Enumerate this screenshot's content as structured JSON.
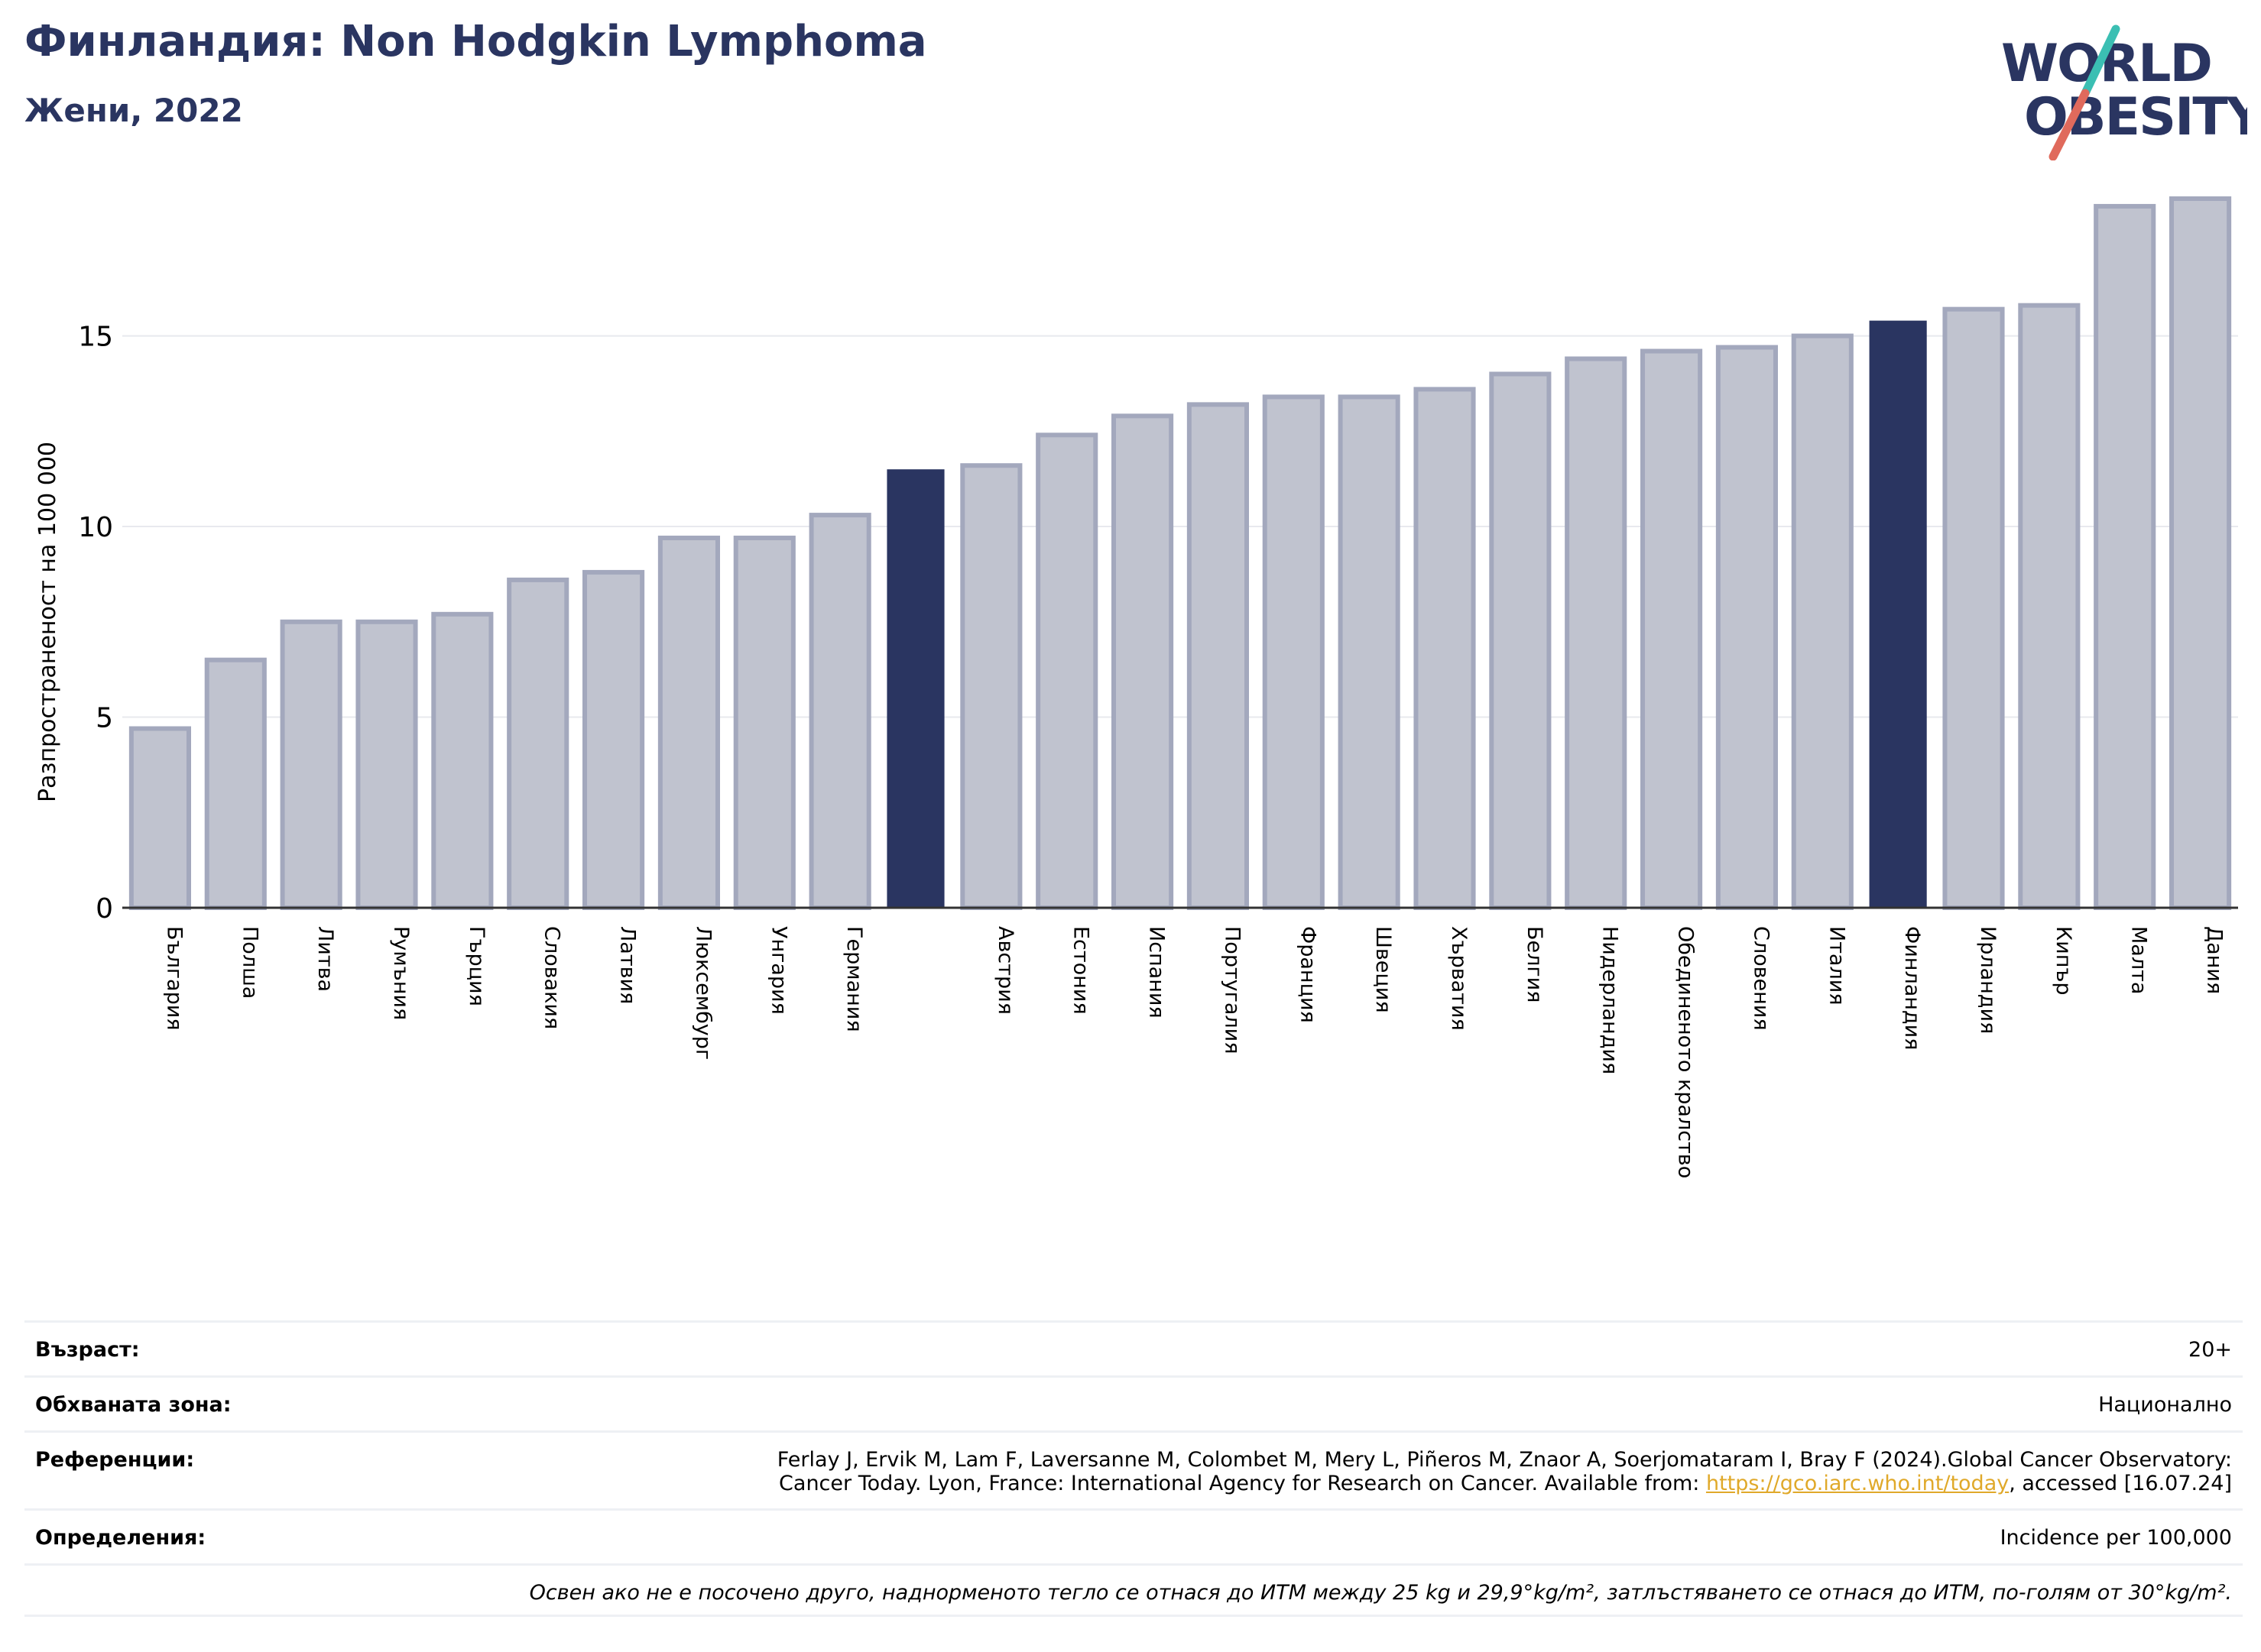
{
  "header": {
    "title": "Финландия: Non Hodgkin Lymphoma",
    "subtitle": "Жени, 2022"
  },
  "logo": {
    "line1": "WORLD",
    "line2": "OBESITY",
    "colors": {
      "text": "#2a3561",
      "slash_teal": "#3bbfb3",
      "slash_red": "#e06a5c"
    }
  },
  "chart_data": {
    "type": "bar",
    "ylabel": "Разпространеност  на 100 000",
    "xlabel": "",
    "ylim": [
      0,
      19
    ],
    "yticks": [
      0,
      5,
      10,
      15
    ],
    "grid": true,
    "colors": {
      "default": "#c0c3cf",
      "default_edge": "#a3a8bd",
      "highlight": "#2a3561"
    },
    "categories": [
      "България",
      "Полша",
      "Литва",
      "Румъния",
      "Гърция",
      "Словакия",
      "Латвия",
      "Люксембург",
      "Унгария",
      "Германия",
      "",
      "Австрия",
      "Естония",
      "Испания",
      "Португалия",
      "Франция",
      "Швеция",
      "Хърватия",
      "Белгия",
      "Нидерландия",
      "Обединеното кралство",
      "Словения",
      "Италия",
      "Финландия",
      "Ирландия",
      "Кипър",
      "Малта",
      "Дания"
    ],
    "values": [
      4.7,
      6.5,
      7.5,
      7.5,
      7.7,
      8.6,
      8.8,
      9.7,
      9.7,
      10.3,
      11.5,
      11.6,
      12.4,
      12.9,
      13.2,
      13.4,
      13.4,
      13.6,
      14.0,
      14.4,
      14.6,
      14.7,
      15.0,
      15.4,
      15.7,
      15.8,
      18.4,
      18.6
    ],
    "highlight": [
      10,
      23
    ]
  },
  "info": {
    "rows": [
      {
        "label": "Възраст:",
        "value": "20+"
      },
      {
        "label": "Обхваната зона:",
        "value": "Национално"
      },
      {
        "label": "Референции:",
        "value_line1": "Ferlay J, Ervik M, Lam F, Laversanne M, Colombet M, Mery L, Piñeros M, Znaor A, Soerjomataram I, Bray F (2024).Global Cancer Observatory:",
        "value_line2_pre": "Cancer Today. Lyon, France: International Agency for Research on Cancer. Available from: ",
        "value_link": "https://gco.iarc.who.int/today",
        "value_line2_post": ", accessed [16.07.24]"
      },
      {
        "label": "Определения:",
        "value": "Incidence per 100,000"
      }
    ],
    "footnote": "Освен ако не е посочено друго, наднорменото тегло се отнася до ИТМ между 25 kg и 29,9°kg/m², затлъстяването се отнася до ИТМ, по-голям от 30°kg/m²."
  }
}
